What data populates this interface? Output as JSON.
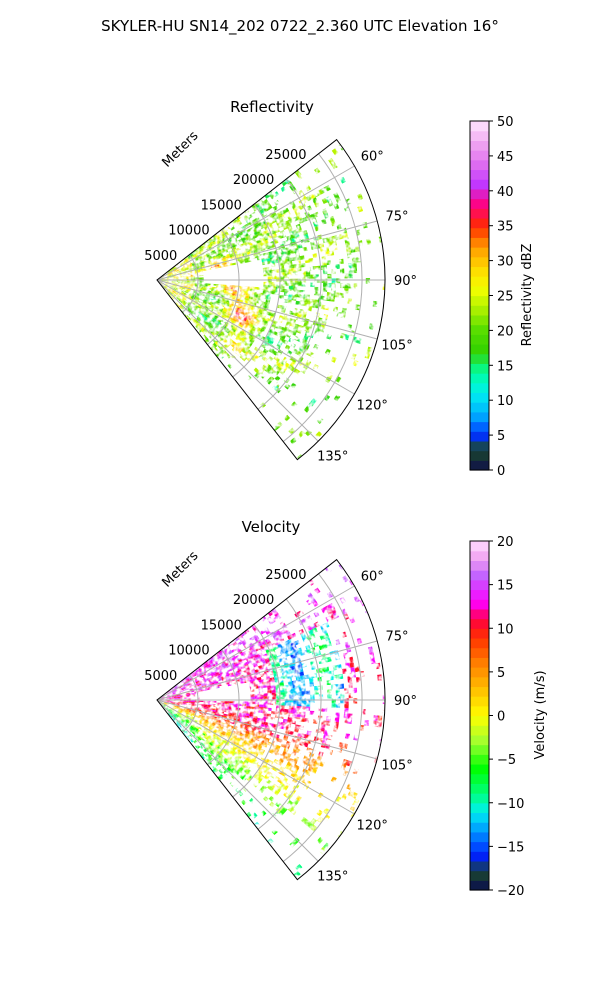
{
  "figure_title": "SKYLER-HU  SN14_202  0722_2.360 UTC Elevation 16°",
  "chart_data": [
    {
      "type": "heatmap",
      "projection": "polar-sector",
      "title": "Reflectivity",
      "range_axis_label": "Meters",
      "range_ticks": [
        5000,
        10000,
        15000,
        20000,
        25000
      ],
      "range_tick_labels": [
        "5000",
        "10000",
        "15000",
        "20000",
        "25000"
      ],
      "r_max": 27800,
      "azimuth_range_deg": [
        52,
        142
      ],
      "azimuth_ticks": [
        60,
        75,
        90,
        105,
        120,
        135
      ],
      "azimuth_tick_labels": [
        "60°",
        "75°",
        "90°",
        "105°",
        "120°",
        "135°"
      ],
      "grid": true,
      "colorbar": {
        "label": "Reflectivity dBZ",
        "min": 0,
        "max": 50,
        "ticks": [
          0,
          5,
          10,
          15,
          20,
          25,
          30,
          35,
          40,
          45,
          50
        ],
        "tick_labels": [
          "0",
          "5",
          "10",
          "15",
          "20",
          "25",
          "30",
          "35",
          "40",
          "45",
          "50"
        ],
        "colormap": "pyart_NWSRef",
        "stops": [
          [
            0,
            "#0f0e4a"
          ],
          [
            3,
            "#1b4a2a"
          ],
          [
            5,
            "#0030ff"
          ],
          [
            8,
            "#00b0ff"
          ],
          [
            11,
            "#00eef0"
          ],
          [
            14,
            "#00ffa0"
          ],
          [
            17,
            "#33d200"
          ],
          [
            20,
            "#55dd00"
          ],
          [
            23,
            "#aaf000"
          ],
          [
            26,
            "#f4ff00"
          ],
          [
            29,
            "#ffd800"
          ],
          [
            32,
            "#ff9a00"
          ],
          [
            35,
            "#ff2a00"
          ],
          [
            38,
            "#ff0080"
          ],
          [
            41,
            "#c038ff"
          ],
          [
            44,
            "#e070f0"
          ],
          [
            47,
            "#f0a8f0"
          ],
          [
            50,
            "#ffe8ff"
          ]
        ]
      },
      "field_summary": {
        "typical_value": 22,
        "notable_features": "25–35 dBZ arc near 8–12 km spanning 95°–120° azimuth; echo-free gap near 80°–92° at 5–12 km"
      }
    },
    {
      "type": "heatmap",
      "projection": "polar-sector",
      "title": "Velocity",
      "range_axis_label": "Meters",
      "range_ticks": [
        5000,
        10000,
        15000,
        20000,
        25000
      ],
      "range_tick_labels": [
        "5000",
        "10000",
        "15000",
        "20000",
        "25000"
      ],
      "r_max": 27800,
      "azimuth_range_deg": [
        52,
        142
      ],
      "azimuth_ticks": [
        60,
        75,
        90,
        105,
        120,
        135
      ],
      "azimuth_tick_labels": [
        "60°",
        "75°",
        "90°",
        "105°",
        "120°",
        "135°"
      ],
      "grid": true,
      "colorbar": {
        "label": "Velocity (m/s)",
        "min": -20,
        "max": 20,
        "ticks": [
          -20,
          -15,
          -10,
          -5,
          0,
          5,
          10,
          15,
          20
        ],
        "tick_labels": [
          "−20",
          "−15",
          "−10",
          "−5",
          "0",
          "5",
          "10",
          "15",
          "20"
        ],
        "colormap": "pyart_BuDRd18",
        "stops": [
          [
            -20,
            "#0a0a50"
          ],
          [
            -18,
            "#1a4430"
          ],
          [
            -16,
            "#0020ff"
          ],
          [
            -13,
            "#00a0ff"
          ],
          [
            -11,
            "#00f0f0"
          ],
          [
            -9,
            "#00ff80"
          ],
          [
            -6,
            "#00ff00"
          ],
          [
            -3,
            "#a0ff30"
          ],
          [
            0,
            "#ffff00"
          ],
          [
            3,
            "#ffc000"
          ],
          [
            6,
            "#ff8000"
          ],
          [
            9,
            "#ff3000"
          ],
          [
            11,
            "#ff0040"
          ],
          [
            13,
            "#ff00ff"
          ],
          [
            16,
            "#c060ff"
          ],
          [
            18,
            "#f0a0f0"
          ],
          [
            20,
            "#ffe0ff"
          ]
        ]
      },
      "field_summary": {
        "typical_value": 8,
        "notable_features": "inbound −10 to −15 m/s cluster near 70°–90° at 15–22 km; outbound 0–8 m/s south of 100°"
      }
    }
  ]
}
